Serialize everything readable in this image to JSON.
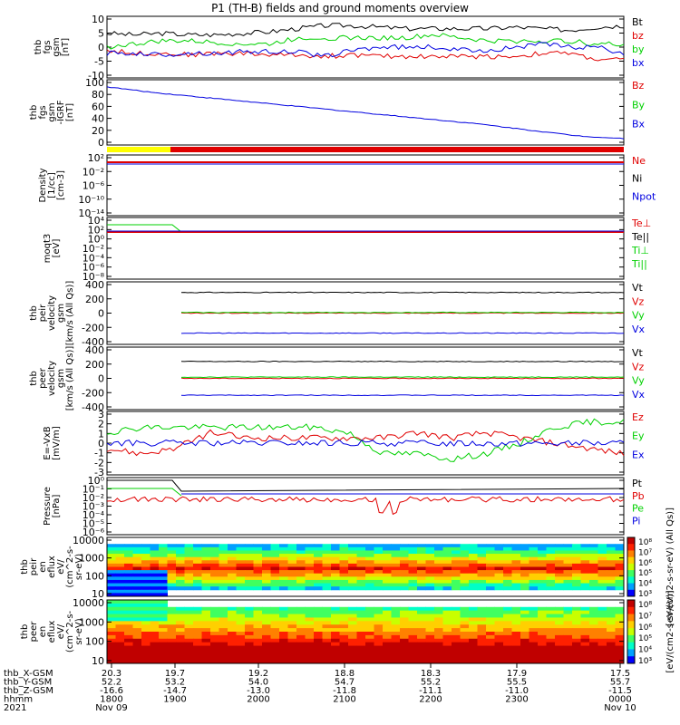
{
  "title": "P1 (TH-B) fields and ground moments overview",
  "colors": {
    "black": "#000000",
    "red": "#e00000",
    "green": "#00d000",
    "blue": "#0000e0",
    "yellow": "#ffff00"
  },
  "chart_data": [
    {
      "id": "fgs_gsm",
      "type": "line",
      "ylabel": [
        "thb",
        "fgs",
        "gsm",
        "[nT]"
      ],
      "yrange": [
        -10,
        10
      ],
      "ticks": [
        "10",
        "5",
        "0",
        "-5",
        "-10"
      ],
      "legend": [
        {
          "name": "Bt",
          "color": "black"
        },
        {
          "name": "bz",
          "color": "red"
        },
        {
          "name": "by",
          "color": "green"
        },
        {
          "name": "bx",
          "color": "blue"
        }
      ],
      "series": [
        {
          "name": "Bt",
          "color": "black",
          "values": [
            4.5,
            4,
            4.5,
            4,
            4,
            4.5,
            5,
            6,
            7,
            7,
            6.5,
            6,
            6,
            6,
            6,
            6.5,
            6,
            5.5,
            6.5,
            7
          ]
        },
        {
          "name": "bz",
          "color": "red",
          "values": [
            -1,
            -2,
            -2,
            -2.5,
            -2,
            -2,
            -2.5,
            -2.5,
            -3,
            -2.5,
            -3,
            -3,
            -3,
            -3,
            -3,
            -3,
            -2,
            -2,
            -4,
            -4
          ]
        },
        {
          "name": "by",
          "color": "green",
          "values": [
            0,
            1,
            2,
            2,
            1.5,
            1,
            1,
            3,
            3,
            3,
            3,
            3,
            4,
            3,
            2,
            2,
            2,
            2,
            1,
            1
          ]
        },
        {
          "name": "bx",
          "color": "blue",
          "values": [
            -2,
            -2,
            -2.5,
            -2,
            -2,
            -1.5,
            -1.5,
            -1.5,
            -3,
            -1,
            0,
            0,
            0,
            -1,
            -1,
            0,
            1,
            0,
            0,
            -2
          ]
        }
      ]
    },
    {
      "id": "fgs_gsm_igrf",
      "type": "line",
      "ylabel": [
        "thb",
        "fgs",
        "gsm",
        "-IGRF",
        "[nT]"
      ],
      "yrange": [
        -10,
        100
      ],
      "ticks": [
        "100",
        "80",
        "60",
        "40",
        "20",
        "0"
      ],
      "legend": [
        {
          "name": "Bz",
          "color": "red"
        },
        {
          "name": "By",
          "color": "green"
        },
        {
          "name": "Bx",
          "color": "blue"
        }
      ],
      "series": [
        {
          "name": "Bx",
          "color": "blue",
          "values": [
            88,
            83,
            78,
            74,
            70,
            66,
            62,
            58,
            54,
            50,
            46,
            42,
            38,
            34,
            30,
            26,
            21,
            16,
            11,
            6,
            3,
            1
          ]
        }
      ]
    },
    {
      "id": "density",
      "type": "line",
      "ylabel": [
        "Density",
        "[1/cc]",
        "[cm-3]"
      ],
      "ticks": [
        "10²",
        "10⁻²",
        "10⁻⁶",
        "10⁻¹⁰",
        "10⁻¹⁴"
      ],
      "legend": [
        {
          "name": "Ne",
          "color": "red"
        },
        {
          "name": "Ni",
          "color": "black"
        },
        {
          "name": "Npot",
          "color": "blue"
        }
      ]
    },
    {
      "id": "temperature",
      "type": "line",
      "ylabel": [
        "moqt3",
        "[eV]"
      ],
      "ticks": [
        "10⁴",
        "10²",
        "10⁰",
        "10⁻²",
        "10⁻⁴",
        "10⁻⁶",
        "10⁻⁸"
      ],
      "legend": [
        {
          "name": "Te⊥",
          "color": "red"
        },
        {
          "name": "Te||",
          "color": "black"
        },
        {
          "name": "Ti⊥",
          "color": "green"
        },
        {
          "name": "Ti||",
          "color": "green"
        }
      ]
    },
    {
      "id": "peir_velocity",
      "type": "line",
      "ylabel": [
        "thb",
        "peir",
        "velocity",
        "gsm",
        "[km/s (All Qs)]"
      ],
      "yrange": [
        -500,
        500
      ],
      "ticks": [
        "400",
        "200",
        "0",
        "-200",
        "-400"
      ],
      "legend": [
        {
          "name": "Vt",
          "color": "black"
        },
        {
          "name": "Vz",
          "color": "red"
        },
        {
          "name": "Vy",
          "color": "green"
        },
        {
          "name": "Vx",
          "color": "blue"
        }
      ],
      "series": [
        {
          "name": "Vt",
          "color": "black",
          "values": [
            330,
            330,
            330,
            330,
            330,
            330,
            330
          ]
        },
        {
          "name": "Vz",
          "color": "red",
          "values": [
            0,
            0,
            0,
            0,
            0,
            0,
            0
          ]
        },
        {
          "name": "Vy",
          "color": "green",
          "values": [
            10,
            10,
            10,
            10,
            10,
            10,
            10
          ]
        },
        {
          "name": "Vx",
          "color": "blue",
          "values": [
            -320,
            -320,
            -320,
            -320,
            -320,
            -320,
            -320
          ]
        }
      ]
    },
    {
      "id": "peer_velocity",
      "type": "line",
      "ylabel": [
        "thb",
        "peer",
        "velocity",
        "gsm",
        "[km/s (All Qs)]"
      ],
      "yrange": [
        -500,
        500
      ],
      "ticks": [
        "400",
        "200",
        "0",
        "-200",
        "-400"
      ],
      "legend": [
        {
          "name": "Vt",
          "color": "black"
        },
        {
          "name": "Vz",
          "color": "red"
        },
        {
          "name": "Vy",
          "color": "green"
        },
        {
          "name": "Vx",
          "color": "blue"
        }
      ],
      "series": [
        {
          "name": "Vt",
          "color": "black",
          "values": [
            270,
            270,
            270,
            270,
            270,
            270,
            270
          ]
        },
        {
          "name": "Vz",
          "color": "red",
          "values": [
            0,
            0,
            0,
            0,
            0,
            0,
            0
          ]
        },
        {
          "name": "Vy",
          "color": "green",
          "values": [
            20,
            20,
            20,
            20,
            20,
            20,
            20
          ]
        },
        {
          "name": "Vx",
          "color": "blue",
          "values": [
            -270,
            -270,
            -270,
            -270,
            -270,
            -270,
            -270
          ]
        }
      ]
    },
    {
      "id": "efield",
      "type": "line",
      "ylabel": [
        "E=-VxB",
        "[mV/m]"
      ],
      "yrange": [
        -3,
        3
      ],
      "ticks": [
        "3",
        "2",
        "1",
        "0",
        "-1",
        "-2",
        "-3"
      ],
      "legend": [
        {
          "name": "Ez",
          "color": "red"
        },
        {
          "name": "Ey",
          "color": "green"
        },
        {
          "name": "Ex",
          "color": "blue"
        }
      ],
      "series": [
        {
          "name": "Ez",
          "color": "red",
          "values": [
            -0.5,
            -1,
            -0.5,
            1,
            0.5,
            0.5,
            0.5,
            0.5,
            0.5,
            1,
            0.5,
            1,
            0.5,
            0,
            -0.5,
            -1
          ]
        },
        {
          "name": "Ey",
          "color": "green",
          "values": [
            1,
            1.5,
            1.5,
            1.5,
            1.5,
            1.5,
            1.5,
            1,
            -1,
            -1,
            -1.5,
            -1,
            0,
            1.5,
            2,
            2
          ]
        },
        {
          "name": "Ex",
          "color": "blue",
          "values": [
            0,
            0,
            0,
            0,
            0,
            0,
            0,
            0,
            0,
            0,
            0,
            0,
            0,
            0,
            0,
            0
          ]
        }
      ]
    },
    {
      "id": "pressure",
      "type": "line",
      "ylabel": [
        "Pressure",
        "[nPa]"
      ],
      "ticks": [
        "10⁰",
        "10⁻¹",
        "10⁻²",
        "10⁻³",
        "10⁻⁴",
        "10⁻⁵",
        "10⁻⁶"
      ],
      "legend": [
        {
          "name": "Pt",
          "color": "black"
        },
        {
          "name": "Pb",
          "color": "red"
        },
        {
          "name": "Pe",
          "color": "green"
        },
        {
          "name": "Pi",
          "color": "blue"
        }
      ]
    },
    {
      "id": "peir_eflux",
      "type": "heatmap",
      "ylabel": [
        "thb",
        "peir",
        "en",
        "eflux",
        "eV/",
        "(cm^2-s-",
        "sr-eV)"
      ],
      "ticks": [
        "10000",
        "1000",
        "100",
        "10"
      ],
      "colorbar": {
        "ticks": [
          "10⁸",
          "10⁷",
          "10⁶",
          "10⁵",
          "10⁴",
          "10³"
        ],
        "label": "[eV/(cm2-s-sr-eV) (All Qs)]"
      }
    },
    {
      "id": "peer_eflux",
      "type": "heatmap",
      "ylabel": [
        "thb",
        "peer",
        "en",
        "eflux",
        "eV/",
        "(cm^2-s-",
        "sr-eV)"
      ],
      "ticks": [
        "10000",
        "1000",
        "100",
        "10"
      ],
      "colorbar": {
        "ticks": [
          "10⁸",
          "10⁷",
          "10⁶",
          "10⁵",
          "10⁴",
          "10³"
        ],
        "label": "[eV/(cm2-s-sr-eV)]"
      }
    }
  ],
  "xaxis": {
    "rows": [
      {
        "label": "thb_X-GSM",
        "values": [
          "20.3",
          "19.7",
          "19.2",
          "18.8",
          "18.3",
          "17.9",
          "17.5"
        ]
      },
      {
        "label": "thb_Y-GSM",
        "values": [
          "52.2",
          "53.2",
          "54.0",
          "54.7",
          "55.2",
          "55.5",
          "55.7"
        ]
      },
      {
        "label": "thb_Z-GSM",
        "values": [
          "-16.6",
          "-14.7",
          "-13.0",
          "-11.8",
          "-11.1",
          "-11.0",
          "-11.5"
        ]
      },
      {
        "label": "hhmm",
        "values": [
          "1800",
          "1900",
          "2000",
          "2100",
          "2200",
          "2300",
          "0000"
        ]
      }
    ],
    "year": "2021",
    "date_start": "Nov 09",
    "date_end": "Nov 10"
  }
}
